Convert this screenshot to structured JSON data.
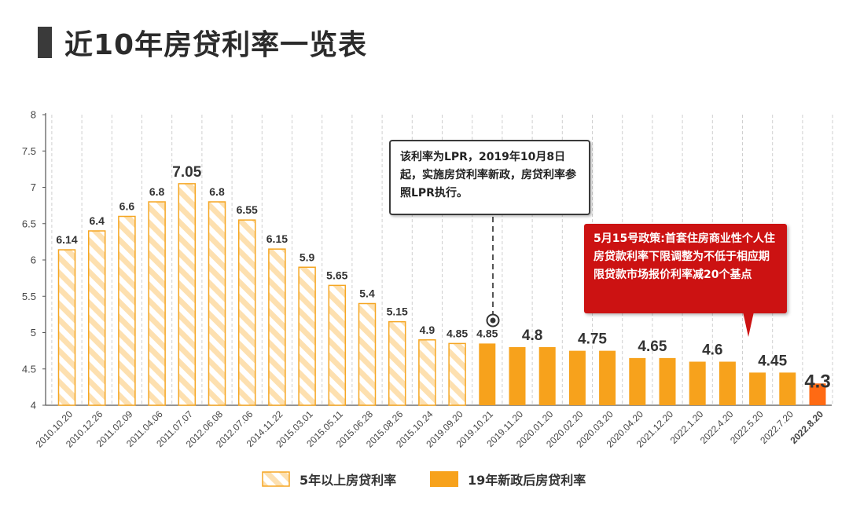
{
  "title": "近10年房贷利率一览表",
  "colors": {
    "hatched_fill": "#fde0b0",
    "hatched_stroke": "#f5a623",
    "solid_bar": "#f7a21c",
    "highlight_bar": "#ff6a13",
    "highlight_label": "#ff6a13",
    "callout_red": "#cc1212"
  },
  "callout_lpr": {
    "text": "该利率为LPR，2019年10月8日起，实施房贷利率新政，房贷利率参照LPR执行。"
  },
  "callout_policy": {
    "text": "5月15号政策:首套住房商业性个人住房贷款利率下限调整为不低于相应期限贷款市场报价利率减20个基点"
  },
  "legend": [
    {
      "label": "5年以上房贷利率",
      "style": "hatched"
    },
    {
      "label": "19年新政后房贷利率",
      "style": "solid"
    }
  ],
  "chart_data": {
    "type": "bar",
    "title": "近10年房贷利率一览表",
    "xlabel": "",
    "ylabel": "",
    "ylim": [
      4,
      8
    ],
    "yticks": [
      "4",
      "4.5",
      "5",
      "5.5",
      "6",
      "6.5",
      "7",
      "7.5",
      "8"
    ],
    "grid": "vertical dashed",
    "legend_position": "bottom",
    "categories": [
      "2010.10.20",
      "2010.12.26",
      "2011.02.09",
      "2011.04.06",
      "2011.07.07",
      "2012.06.08",
      "2012.07.06",
      "2014.11.22",
      "2015.03.01",
      "2015.05.11",
      "2015.06.28",
      "2015.08.26",
      "2015.10.24",
      "2019.09.20",
      "2019.10.21",
      "2019.11.20",
      "2020.01.20",
      "2020.02.20",
      "2020.03.20",
      "2020.04.20",
      "2021.12.20",
      "2022.1.20",
      "2022.4.20",
      "2022.5.20",
      "2022.7.20",
      "2022.8.20"
    ],
    "values": [
      6.14,
      6.4,
      6.6,
      6.8,
      7.05,
      6.8,
      6.55,
      6.15,
      5.9,
      5.65,
      5.4,
      5.15,
      4.9,
      4.85,
      4.85,
      4.8,
      4.8,
      4.75,
      4.75,
      4.65,
      4.65,
      4.6,
      4.6,
      4.45,
      4.45,
      4.3
    ],
    "bar_style": [
      "hatched",
      "hatched",
      "hatched",
      "hatched",
      "hatched",
      "hatched",
      "hatched",
      "hatched",
      "hatched",
      "hatched",
      "hatched",
      "hatched",
      "hatched",
      "hatched",
      "solid",
      "solid",
      "solid",
      "solid",
      "solid",
      "solid",
      "solid",
      "solid",
      "solid",
      "solid",
      "solid",
      "highlight"
    ],
    "data_labels": [
      {
        "index": 0,
        "text": "6.14",
        "size": "normal"
      },
      {
        "index": 1,
        "text": "6.4",
        "size": "normal"
      },
      {
        "index": 2,
        "text": "6.6",
        "size": "normal"
      },
      {
        "index": 3,
        "text": "6.8",
        "size": "normal"
      },
      {
        "index": 4,
        "text": "7.05",
        "size": "large"
      },
      {
        "index": 5,
        "text": "6.8",
        "size": "normal"
      },
      {
        "index": 6,
        "text": "6.55",
        "size": "normal"
      },
      {
        "index": 7,
        "text": "6.15",
        "size": "normal"
      },
      {
        "index": 8,
        "text": "5.9",
        "size": "normal"
      },
      {
        "index": 9,
        "text": "5.65",
        "size": "normal"
      },
      {
        "index": 10,
        "text": "5.4",
        "size": "normal"
      },
      {
        "index": 11,
        "text": "5.15",
        "size": "normal"
      },
      {
        "index": 12,
        "text": "4.9",
        "size": "normal"
      },
      {
        "index": 13,
        "text": "4.85",
        "size": "normal"
      },
      {
        "index": 14,
        "text": "4.85",
        "size": "normal"
      },
      {
        "index": 15,
        "text": "4.8",
        "size": "large",
        "span": 2
      },
      {
        "index": 17,
        "text": "4.75",
        "size": "large",
        "span": 2
      },
      {
        "index": 19,
        "text": "4.65",
        "size": "large",
        "span": 2
      },
      {
        "index": 21,
        "text": "4.6",
        "size": "large",
        "span": 2
      },
      {
        "index": 23,
        "text": "4.45",
        "size": "large",
        "span": 2
      },
      {
        "index": 25,
        "text": "4.3",
        "size": "highlight"
      }
    ],
    "bold_category_index": 25
  }
}
